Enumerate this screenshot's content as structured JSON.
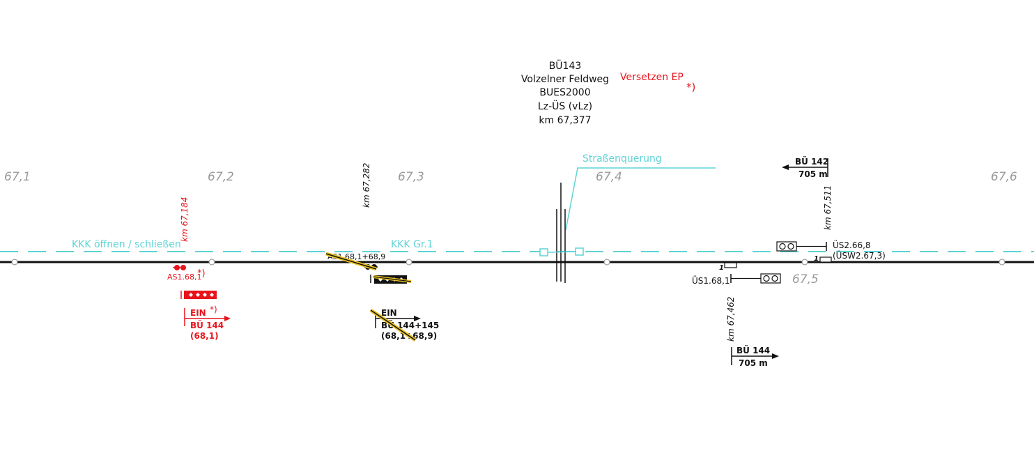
{
  "title_block": {
    "line1": "BÜ143",
    "line2": "Volzelner Feldweg",
    "line3": "BUES2000",
    "line4": "Lz-ÜS (vLz)",
    "line5": "km 67,377"
  },
  "versetzen": {
    "text": "Versetzen EP",
    "note": "*)"
  },
  "km_marks": [
    "67,1",
    "67,2",
    "67,3",
    "67,4",
    "67,5",
    "67,6"
  ],
  "cyan_labels": {
    "kkk_open": "KKK öffnen / schließen",
    "kkk_gr": "KKK Gr.1",
    "strasse": "Straßenquerung"
  },
  "vertical_km": {
    "k184": "km 67,184",
    "k282": "km 67,282",
    "k511": "km 67,511",
    "k462": "km 67,462"
  },
  "left_signal": {
    "as_label": "AS1.68,1",
    "note": "*)",
    "ein": "EIN",
    "ein_note": "*)",
    "bu": "BÜ 144",
    "pos": "(68,1)"
  },
  "mid_signal": {
    "as_label": "AS1.68,1+68,9",
    "ein": "EIN",
    "bu": "BÜ 144+145",
    "pos": "(68,1+68,9)"
  },
  "right_signals": {
    "bu142": "BÜ 142",
    "dist142": "705 m",
    "us266": "ÜS2.66,8",
    "usw": "(ÜSW2.67,3)",
    "us168": "ÜS1.68,1",
    "num1": "1",
    "num1b": "1",
    "bu144": "BÜ 144",
    "dist144": "705 m"
  },
  "colors": {
    "black": "#111111",
    "red": "#e8141c",
    "cyan": "#5fd3d6",
    "gray": "#9a9a9a",
    "yellow": "#e8c020"
  }
}
